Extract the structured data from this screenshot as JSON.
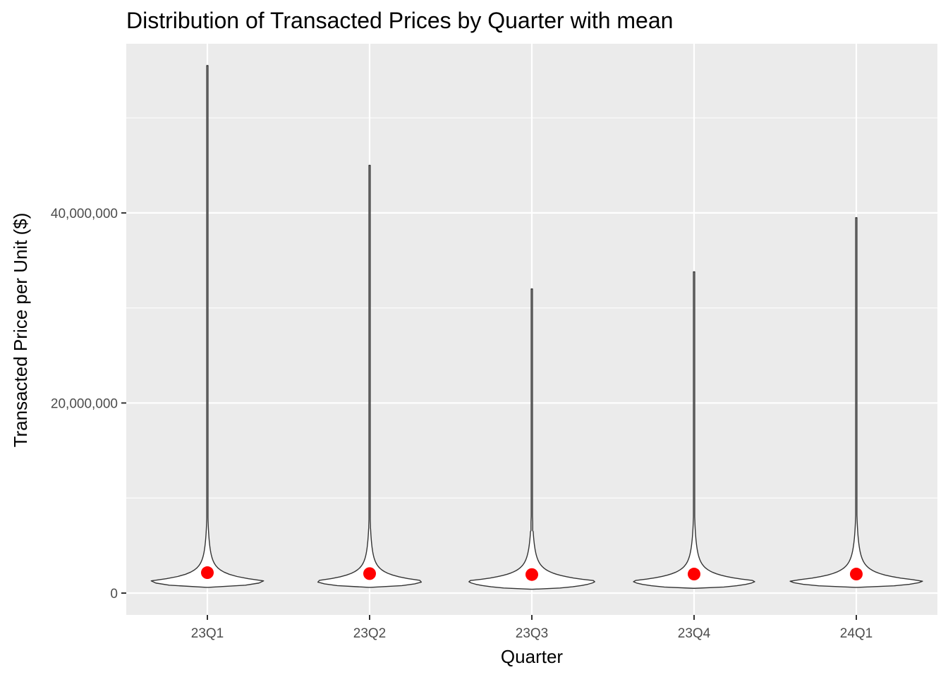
{
  "chart_data": {
    "type": "violin",
    "title": "Distribution of Transacted Prices by Quarter with mean",
    "xlabel": "Quarter",
    "ylabel": "Transacted Price per Unit ($)",
    "categories": [
      "23Q1",
      "23Q2",
      "23Q3",
      "23Q4",
      "24Q1"
    ],
    "y_ticks": [
      0,
      20000000,
      40000000
    ],
    "y_tick_labels": [
      "0",
      "20,000,000",
      "40,000,000"
    ],
    "ylim": [
      -2300000,
      57800000
    ],
    "grid": true,
    "legend": "none",
    "colors": {
      "panel": "#ebebeb",
      "grid": "#ffffff",
      "violin_fill": "#ffffff",
      "violin_line": "#333333",
      "mean_point": "#ff0000"
    },
    "series": [
      {
        "category": "23Q1",
        "mean": 2150000,
        "min": 600000,
        "max": 55500000,
        "mode": 1300000,
        "density_width": 0.77,
        "tail_start": 8500000
      },
      {
        "category": "23Q2",
        "mean": 2050000,
        "min": 600000,
        "max": 45000000,
        "mode": 1300000,
        "density_width": 0.73,
        "tail_start": 6800000
      },
      {
        "category": "23Q3",
        "mean": 1950000,
        "min": 400000,
        "max": 32000000,
        "mode": 1300000,
        "density_width": 0.87,
        "tail_start": 6500000
      },
      {
        "category": "23Q4",
        "mean": 2000000,
        "min": 500000,
        "max": 33800000,
        "mode": 1300000,
        "density_width": 0.84,
        "tail_start": 8500000
      },
      {
        "category": "24Q1",
        "mean": 2000000,
        "min": 600000,
        "max": 39500000,
        "mode": 1300000,
        "density_width": 0.91,
        "tail_start": 7500000
      }
    ]
  }
}
